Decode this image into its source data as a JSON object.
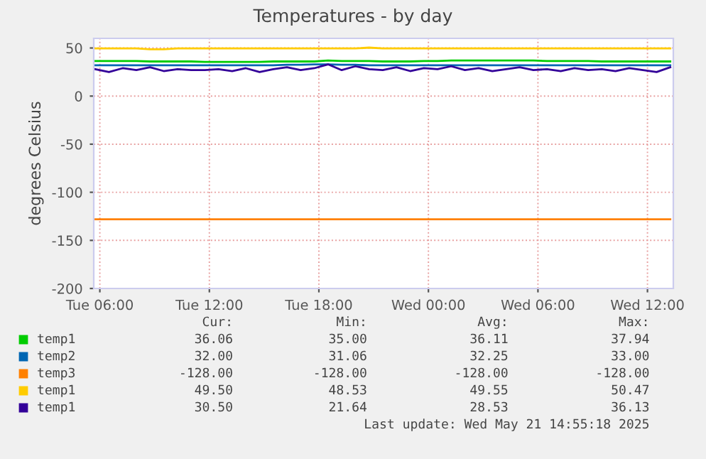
{
  "chart_data": {
    "type": "line",
    "title": "Temperatures - by day",
    "ylabel": "degrees Celsius",
    "x": [
      "2025-05-20T05:45",
      "2025-05-20T06:30",
      "2025-05-20T07:15",
      "2025-05-20T08:00",
      "2025-05-20T08:45",
      "2025-05-20T09:30",
      "2025-05-20T10:15",
      "2025-05-20T11:00",
      "2025-05-20T11:45",
      "2025-05-20T12:30",
      "2025-05-20T13:15",
      "2025-05-20T14:00",
      "2025-05-20T14:45",
      "2025-05-20T15:30",
      "2025-05-20T16:15",
      "2025-05-20T17:00",
      "2025-05-20T17:45",
      "2025-05-20T18:30",
      "2025-05-20T19:15",
      "2025-05-20T20:00",
      "2025-05-20T20:45",
      "2025-05-20T21:30",
      "2025-05-20T22:15",
      "2025-05-20T23:00",
      "2025-05-20T23:45",
      "2025-05-21T00:30",
      "2025-05-21T01:15",
      "2025-05-21T02:00",
      "2025-05-21T02:45",
      "2025-05-21T03:30",
      "2025-05-21T04:15",
      "2025-05-21T05:00",
      "2025-05-21T05:45",
      "2025-05-21T06:30",
      "2025-05-21T07:15",
      "2025-05-21T08:00",
      "2025-05-21T08:45",
      "2025-05-21T09:30",
      "2025-05-21T10:15",
      "2025-05-21T11:00",
      "2025-05-21T11:45",
      "2025-05-21T12:30",
      "2025-05-21T13:15"
    ],
    "series": [
      {
        "name": "temp1",
        "color": "#00cc00",
        "values": [
          36.5,
          36.5,
          36.5,
          36.5,
          36,
          36,
          36,
          36,
          35.5,
          35.5,
          35.5,
          35.5,
          35.5,
          36,
          36,
          36,
          36,
          37,
          36.5,
          36.5,
          36.5,
          36,
          36,
          36,
          36.5,
          36.5,
          37,
          37,
          37,
          37,
          37,
          37,
          37,
          36.5,
          36.5,
          36.5,
          36.5,
          36,
          36,
          36,
          36,
          36,
          36
        ]
      },
      {
        "name": "temp2",
        "color": "#0066b3",
        "values": [
          32,
          32,
          32,
          32,
          32,
          32,
          32,
          32,
          32,
          32,
          32,
          32,
          32,
          32,
          32.5,
          32.5,
          33,
          33,
          32.5,
          32.5,
          32,
          32,
          32,
          32,
          32,
          32,
          32,
          32,
          32,
          32,
          32,
          32,
          32,
          32,
          32,
          32,
          32,
          32,
          32,
          32,
          32,
          32,
          32
        ]
      },
      {
        "name": "temp3",
        "color": "#ff8000",
        "values": [
          -128,
          -128,
          -128,
          -128,
          -128,
          -128,
          -128,
          -128,
          -128,
          -128,
          -128,
          -128,
          -128,
          -128,
          -128,
          -128,
          -128,
          -128,
          -128,
          -128,
          -128,
          -128,
          -128,
          -128,
          -128,
          -128,
          -128,
          -128,
          -128,
          -128,
          -128,
          -128,
          -128,
          -128,
          -128,
          -128,
          -128,
          -128,
          -128,
          -128,
          -128,
          -128,
          -128
        ]
      },
      {
        "name": "temp1",
        "color": "#ffcc00",
        "values": [
          49.5,
          49.5,
          49.5,
          49.5,
          48.6,
          48.6,
          49.5,
          49.5,
          49.5,
          49.5,
          49.5,
          49.5,
          49.5,
          49.5,
          49.5,
          49.5,
          49.5,
          49.5,
          49.5,
          49.5,
          50.4,
          49.5,
          49.5,
          49.5,
          49.5,
          49.5,
          49.5,
          49.5,
          49.5,
          49.5,
          49.5,
          49.5,
          49.5,
          49.5,
          49.5,
          49.5,
          49.5,
          49.5,
          49.5,
          49.5,
          49.5,
          49.5,
          49.5
        ]
      },
      {
        "name": "temp1",
        "color": "#330099",
        "values": [
          28,
          25,
          29,
          27,
          30,
          26,
          28,
          27,
          27,
          28,
          26,
          29,
          25,
          28,
          30,
          27,
          29,
          33,
          27,
          31,
          28,
          27,
          30,
          26,
          29,
          28,
          31,
          27,
          29,
          26,
          28,
          30,
          27,
          28,
          26,
          29,
          27,
          28,
          26,
          29,
          27,
          25,
          30
        ]
      }
    ],
    "xlim": [
      "2025-05-20T05:40",
      "2025-05-21T13:25"
    ],
    "xticks": [
      {
        "value": "2025-05-20T06:00",
        "label": "Tue 06:00"
      },
      {
        "value": "2025-05-20T12:00",
        "label": "Tue 12:00"
      },
      {
        "value": "2025-05-20T18:00",
        "label": "Tue 18:00"
      },
      {
        "value": "2025-05-21T00:00",
        "label": "Wed 00:00"
      },
      {
        "value": "2025-05-21T06:00",
        "label": "Wed 06:00"
      },
      {
        "value": "2025-05-21T12:00",
        "label": "Wed 12:00"
      }
    ],
    "ylim": [
      -200,
      60
    ],
    "yticks": [
      -200,
      -150,
      -100,
      -50,
      0,
      50
    ],
    "grid": true,
    "legend": "bottom",
    "annotations": [
      "Cur:",
      "Min:",
      "Avg:",
      "Max:",
      "36.06",
      "35.00",
      "36.11",
      "37.94",
      "32.00",
      "31.06",
      "32.25",
      "33.00",
      "-128.00",
      "-128.00",
      "-128.00",
      "-128.00",
      "49.50",
      "48.53",
      "49.55",
      "50.47",
      "30.50",
      "21.64",
      "28.53",
      "36.13",
      "Last update: Wed May 21 14:55:18 2025"
    ]
  }
}
